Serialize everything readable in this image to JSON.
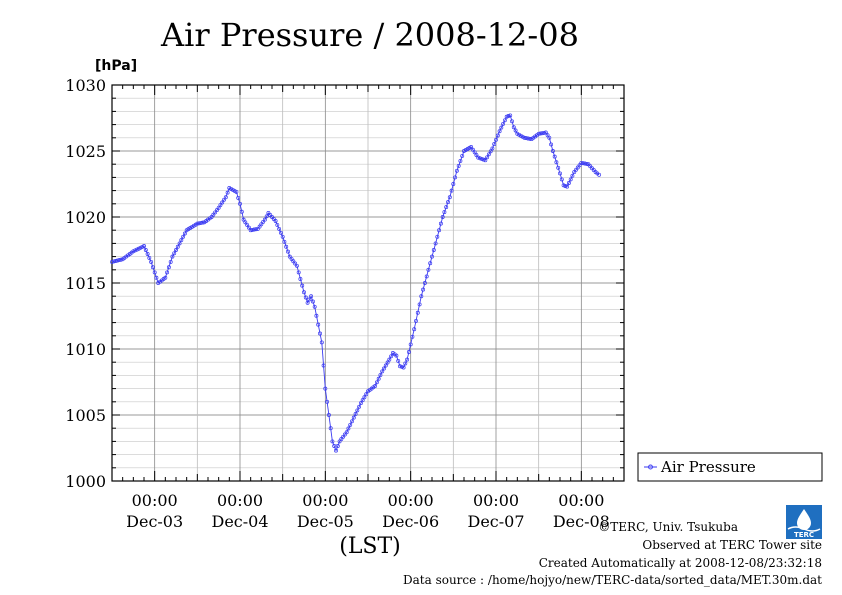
{
  "chart_data": {
    "type": "line",
    "title": "Air Pressure / 2008-12-08",
    "unit_label": "[hPa]",
    "xlabel": "(LST)",
    "ylim": [
      1000,
      1030
    ],
    "yticks": [
      "1000",
      "1005",
      "1010",
      "1015",
      "1020",
      "1025",
      "1030"
    ],
    "xlim_hours": [
      0,
      144
    ],
    "x_major_ticks": [
      {
        "time": "00:00",
        "date": "Dec-03"
      },
      {
        "time": "00:00",
        "date": "Dec-04"
      },
      {
        "time": "00:00",
        "date": "Dec-05"
      },
      {
        "time": "00:00",
        "date": "Dec-06"
      },
      {
        "time": "00:00",
        "date": "Dec-07"
      },
      {
        "time": "00:00",
        "date": "Dec-08"
      }
    ],
    "grid": true,
    "legend_position": "right",
    "series": [
      {
        "name": "Air Pressure",
        "color": "#3a3af2",
        "marker": "circle",
        "points": [
          [
            0,
            1016.6
          ],
          [
            3,
            1016.8
          ],
          [
            6,
            1017.4
          ],
          [
            9,
            1017.8
          ],
          [
            11,
            1016.6
          ],
          [
            13,
            1015.0
          ],
          [
            15,
            1015.4
          ],
          [
            17,
            1017.0
          ],
          [
            19,
            1018.0
          ],
          [
            21,
            1019.0
          ],
          [
            24,
            1019.5
          ],
          [
            26,
            1019.6
          ],
          [
            28,
            1020.0
          ],
          [
            30,
            1020.7
          ],
          [
            32,
            1021.5
          ],
          [
            33,
            1022.2
          ],
          [
            35,
            1021.9
          ],
          [
            36,
            1021.0
          ],
          [
            37,
            1019.8
          ],
          [
            39,
            1019.0
          ],
          [
            41,
            1019.1
          ],
          [
            43,
            1019.8
          ],
          [
            44,
            1020.3
          ],
          [
            46,
            1019.7
          ],
          [
            48,
            1018.5
          ],
          [
            50,
            1017.0
          ],
          [
            52,
            1016.3
          ],
          [
            54,
            1014.3
          ],
          [
            55,
            1013.5
          ],
          [
            56,
            1014.0
          ],
          [
            57,
            1013.2
          ],
          [
            59,
            1010.5
          ],
          [
            60,
            1007.0
          ],
          [
            61,
            1005.0
          ],
          [
            62,
            1003.0
          ],
          [
            63,
            1002.3
          ],
          [
            64,
            1003.0
          ],
          [
            66,
            1003.7
          ],
          [
            68,
            1004.8
          ],
          [
            70,
            1005.9
          ],
          [
            72,
            1006.8
          ],
          [
            74,
            1007.2
          ],
          [
            76,
            1008.3
          ],
          [
            78,
            1009.2
          ],
          [
            79,
            1009.7
          ],
          [
            80,
            1009.5
          ],
          [
            81,
            1008.7
          ],
          [
            82,
            1008.6
          ],
          [
            83,
            1009.2
          ],
          [
            85,
            1011.5
          ],
          [
            87,
            1014.0
          ],
          [
            89,
            1016.0
          ],
          [
            91,
            1018.0
          ],
          [
            93,
            1020.0
          ],
          [
            95,
            1021.5
          ],
          [
            97,
            1023.5
          ],
          [
            99,
            1025.0
          ],
          [
            101,
            1025.3
          ],
          [
            103,
            1024.5
          ],
          [
            105,
            1024.3
          ],
          [
            107,
            1025.2
          ],
          [
            109,
            1026.5
          ],
          [
            111,
            1027.6
          ],
          [
            112,
            1027.7
          ],
          [
            113,
            1026.8
          ],
          [
            114,
            1026.3
          ],
          [
            116,
            1026.0
          ],
          [
            118,
            1025.9
          ],
          [
            120,
            1026.3
          ],
          [
            122,
            1026.4
          ],
          [
            123,
            1026.0
          ],
          [
            124,
            1025.0
          ],
          [
            126,
            1023.3
          ],
          [
            127,
            1022.4
          ],
          [
            128,
            1022.3
          ],
          [
            130,
            1023.4
          ],
          [
            132,
            1024.1
          ],
          [
            134,
            1024.0
          ],
          [
            136,
            1023.4
          ],
          [
            137,
            1023.2
          ]
        ]
      }
    ]
  },
  "credits": {
    "copyright": "©TERC, Univ. Tsukuba",
    "observed": "Observed at TERC Tower site",
    "created": "Created Automatically at 2008-12-08/23:32:18",
    "source": "Data source : /home/hojyo/new/TERC-data/sorted_data/MET.30m.dat"
  },
  "logo": {
    "text": "TERC",
    "color": "#1f6fc0"
  }
}
